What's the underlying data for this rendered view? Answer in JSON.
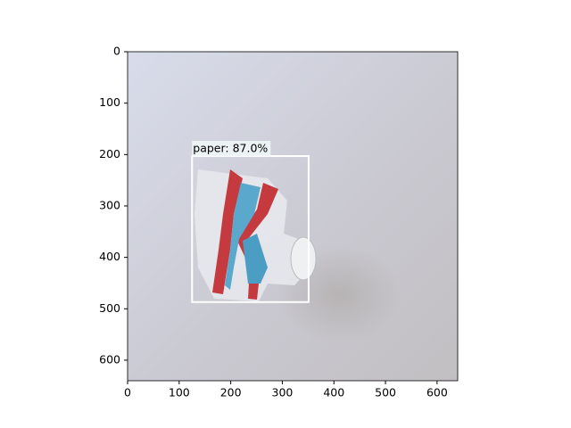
{
  "chart_data": {
    "type": "image",
    "xlim": [
      0,
      640
    ],
    "ylim": [
      640,
      0
    ],
    "xticks": [
      0,
      100,
      200,
      300,
      400,
      500,
      600
    ],
    "yticks": [
      0,
      100,
      200,
      300,
      400,
      500,
      600
    ],
    "boxes": [
      {
        "label": "paper: 87.0%",
        "xmin": 125,
        "ymin": 203,
        "xmax": 351,
        "ymax": 487,
        "color": "#ffffff"
      }
    ]
  }
}
